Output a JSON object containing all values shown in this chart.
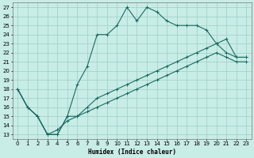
{
  "xlabel": "Humidex (Indice chaleur)",
  "background_color": "#c8ece6",
  "grid_color": "#9ecec8",
  "line_color": "#1a6b60",
  "xlim": [
    -0.5,
    23.5
  ],
  "ylim": [
    12.5,
    27.5
  ],
  "xticks": [
    0,
    1,
    2,
    3,
    4,
    5,
    6,
    7,
    8,
    9,
    10,
    11,
    12,
    13,
    14,
    15,
    16,
    17,
    18,
    19,
    20,
    21,
    22,
    23
  ],
  "yticks": [
    13,
    14,
    15,
    16,
    17,
    18,
    19,
    20,
    21,
    22,
    23,
    24,
    25,
    26,
    27
  ],
  "curve1_x": [
    0,
    1,
    2,
    3,
    4,
    5,
    6,
    7,
    8,
    9,
    10,
    11,
    12,
    13,
    14,
    15,
    16,
    17,
    18,
    19,
    20,
    21,
    22,
    23
  ],
  "curve1_y": [
    18,
    16,
    15,
    13,
    13,
    15,
    18.5,
    20.5,
    24,
    24,
    25,
    27,
    25.5,
    27,
    26.5,
    25.5,
    25,
    25,
    25,
    24.5,
    23,
    22,
    21.5,
    21.5
  ],
  "curve2_x": [
    0,
    1,
    2,
    3,
    4,
    5,
    6,
    7,
    8,
    9,
    10,
    11,
    12,
    13,
    14,
    15,
    16,
    17,
    18,
    19,
    20,
    21,
    22,
    23
  ],
  "curve2_y": [
    18,
    16,
    15,
    13,
    13,
    15,
    15,
    16,
    17,
    17.5,
    18,
    18.5,
    19,
    19.5,
    20,
    20.5,
    21,
    21.5,
    22,
    22.5,
    23,
    23.5,
    21.5,
    21.5
  ],
  "curve3_x": [
    0,
    1,
    2,
    3,
    4,
    5,
    6,
    7,
    8,
    9,
    10,
    11,
    12,
    13,
    14,
    15,
    16,
    17,
    18,
    19,
    20,
    21,
    22,
    23
  ],
  "curve3_y": [
    18,
    16,
    15,
    13,
    13.5,
    14.5,
    15,
    15.5,
    16,
    16.5,
    17,
    17.5,
    18,
    18.5,
    19,
    19.5,
    20,
    20.5,
    21,
    21.5,
    22,
    21.5,
    21,
    21
  ]
}
